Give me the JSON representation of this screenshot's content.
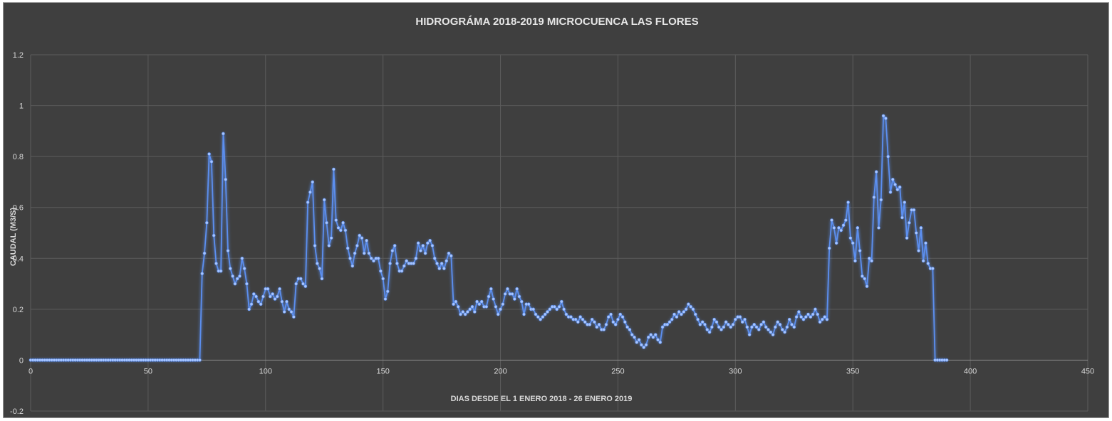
{
  "chart_data": {
    "type": "line",
    "title": "HIDROGRÁMA 2018-2019 MICROCUENCA LAS FLORES",
    "xlabel": "DIAS DESDE EL 1 ENERO 2018 - 26 ENERO 2019",
    "ylabel": "CAUDAL (M3/S)",
    "xlim": [
      0,
      450
    ],
    "ylim": [
      -0.2,
      1.2
    ],
    "x_ticks": [
      "0",
      "50",
      "100",
      "150",
      "200",
      "250",
      "300",
      "350",
      "400",
      "450"
    ],
    "y_ticks": [
      "-0.2",
      "0",
      "0.2",
      "0.4",
      "0.6",
      "0.8",
      "1",
      "1.2"
    ],
    "grid": true,
    "line_color": "#5b8ff0",
    "series": [
      {
        "points": [
          [
            0,
            0
          ],
          [
            72,
            0
          ],
          [
            73,
            0.34
          ],
          [
            74,
            0.42
          ],
          [
            75,
            0.54
          ],
          [
            76,
            0.81
          ],
          [
            77,
            0.78
          ],
          [
            78,
            0.49
          ],
          [
            79,
            0.38
          ],
          [
            80,
            0.35
          ],
          [
            81,
            0.35
          ],
          [
            82,
            0.89
          ],
          [
            83,
            0.71
          ],
          [
            84,
            0.43
          ],
          [
            85,
            0.36
          ],
          [
            86,
            0.33
          ],
          [
            87,
            0.3
          ],
          [
            88,
            0.32
          ],
          [
            89,
            0.33
          ],
          [
            90,
            0.4
          ],
          [
            91,
            0.36
          ],
          [
            92,
            0.3
          ],
          [
            93,
            0.2
          ],
          [
            94,
            0.22
          ],
          [
            95,
            0.26
          ],
          [
            96,
            0.25
          ],
          [
            97,
            0.23
          ],
          [
            98,
            0.22
          ],
          [
            99,
            0.25
          ],
          [
            100,
            0.28
          ],
          [
            101,
            0.28
          ],
          [
            102,
            0.25
          ],
          [
            103,
            0.26
          ],
          [
            104,
            0.24
          ],
          [
            105,
            0.25
          ],
          [
            106,
            0.28
          ],
          [
            107,
            0.23
          ],
          [
            108,
            0.19
          ],
          [
            109,
            0.23
          ],
          [
            110,
            0.2
          ],
          [
            111,
            0.19
          ],
          [
            112,
            0.17
          ],
          [
            113,
            0.3
          ],
          [
            114,
            0.32
          ],
          [
            115,
            0.32
          ],
          [
            116,
            0.3
          ],
          [
            117,
            0.29
          ],
          [
            118,
            0.62
          ],
          [
            119,
            0.66
          ],
          [
            120,
            0.7
          ],
          [
            121,
            0.45
          ],
          [
            122,
            0.38
          ],
          [
            123,
            0.36
          ],
          [
            124,
            0.32
          ],
          [
            125,
            0.63
          ],
          [
            126,
            0.54
          ],
          [
            127,
            0.45
          ],
          [
            128,
            0.48
          ],
          [
            129,
            0.75
          ],
          [
            130,
            0.55
          ],
          [
            131,
            0.52
          ],
          [
            132,
            0.51
          ],
          [
            133,
            0.54
          ],
          [
            134,
            0.51
          ],
          [
            135,
            0.44
          ],
          [
            136,
            0.4
          ],
          [
            137,
            0.37
          ],
          [
            138,
            0.42
          ],
          [
            139,
            0.45
          ],
          [
            140,
            0.49
          ],
          [
            141,
            0.48
          ],
          [
            142,
            0.42
          ],
          [
            143,
            0.47
          ],
          [
            144,
            0.42
          ],
          [
            145,
            0.4
          ],
          [
            146,
            0.39
          ],
          [
            147,
            0.4
          ],
          [
            148,
            0.4
          ],
          [
            149,
            0.35
          ],
          [
            150,
            0.32
          ],
          [
            151,
            0.24
          ],
          [
            152,
            0.27
          ],
          [
            153,
            0.38
          ],
          [
            154,
            0.43
          ],
          [
            155,
            0.45
          ],
          [
            156,
            0.38
          ],
          [
            157,
            0.35
          ],
          [
            158,
            0.35
          ],
          [
            159,
            0.37
          ],
          [
            160,
            0.39
          ],
          [
            161,
            0.38
          ],
          [
            162,
            0.38
          ],
          [
            163,
            0.38
          ],
          [
            164,
            0.4
          ],
          [
            165,
            0.46
          ],
          [
            166,
            0.43
          ],
          [
            167,
            0.45
          ],
          [
            168,
            0.42
          ],
          [
            169,
            0.46
          ],
          [
            170,
            0.47
          ],
          [
            171,
            0.45
          ],
          [
            172,
            0.4
          ],
          [
            173,
            0.38
          ],
          [
            174,
            0.36
          ],
          [
            175,
            0.38
          ],
          [
            176,
            0.36
          ],
          [
            177,
            0.39
          ],
          [
            178,
            0.42
          ],
          [
            179,
            0.41
          ],
          [
            180,
            0.22
          ],
          [
            181,
            0.23
          ],
          [
            182,
            0.21
          ],
          [
            183,
            0.18
          ],
          [
            184,
            0.19
          ],
          [
            185,
            0.18
          ],
          [
            186,
            0.19
          ],
          [
            187,
            0.2
          ],
          [
            188,
            0.21
          ],
          [
            189,
            0.19
          ],
          [
            190,
            0.23
          ],
          [
            191,
            0.22
          ],
          [
            192,
            0.23
          ],
          [
            193,
            0.21
          ],
          [
            194,
            0.21
          ],
          [
            195,
            0.25
          ],
          [
            196,
            0.28
          ],
          [
            197,
            0.24
          ],
          [
            198,
            0.21
          ],
          [
            199,
            0.18
          ],
          [
            200,
            0.2
          ],
          [
            201,
            0.22
          ],
          [
            202,
            0.26
          ],
          [
            203,
            0.28
          ],
          [
            204,
            0.26
          ],
          [
            205,
            0.26
          ],
          [
            206,
            0.24
          ],
          [
            207,
            0.28
          ],
          [
            208,
            0.25
          ],
          [
            209,
            0.23
          ],
          [
            210,
            0.18
          ],
          [
            211,
            0.22
          ],
          [
            212,
            0.22
          ],
          [
            213,
            0.2
          ],
          [
            214,
            0.2
          ],
          [
            215,
            0.18
          ],
          [
            216,
            0.17
          ],
          [
            217,
            0.16
          ],
          [
            218,
            0.17
          ],
          [
            219,
            0.18
          ],
          [
            220,
            0.19
          ],
          [
            221,
            0.2
          ],
          [
            222,
            0.21
          ],
          [
            223,
            0.21
          ],
          [
            224,
            0.2
          ],
          [
            225,
            0.21
          ],
          [
            226,
            0.23
          ],
          [
            227,
            0.2
          ],
          [
            228,
            0.18
          ],
          [
            229,
            0.17
          ],
          [
            230,
            0.17
          ],
          [
            231,
            0.16
          ],
          [
            232,
            0.16
          ],
          [
            233,
            0.15
          ],
          [
            234,
            0.17
          ],
          [
            235,
            0.16
          ],
          [
            236,
            0.15
          ],
          [
            237,
            0.14
          ],
          [
            238,
            0.14
          ],
          [
            239,
            0.16
          ],
          [
            240,
            0.15
          ],
          [
            241,
            0.13
          ],
          [
            242,
            0.14
          ],
          [
            243,
            0.12
          ],
          [
            244,
            0.12
          ],
          [
            245,
            0.14
          ],
          [
            246,
            0.17
          ],
          [
            247,
            0.18
          ],
          [
            248,
            0.15
          ],
          [
            249,
            0.14
          ],
          [
            250,
            0.16
          ],
          [
            251,
            0.18
          ],
          [
            252,
            0.17
          ],
          [
            253,
            0.15
          ],
          [
            254,
            0.13
          ],
          [
            255,
            0.12
          ],
          [
            256,
            0.1
          ],
          [
            257,
            0.09
          ],
          [
            258,
            0.07
          ],
          [
            259,
            0.08
          ],
          [
            260,
            0.06
          ],
          [
            261,
            0.05
          ],
          [
            262,
            0.06
          ],
          [
            263,
            0.09
          ],
          [
            264,
            0.1
          ],
          [
            265,
            0.09
          ],
          [
            266,
            0.1
          ],
          [
            267,
            0.08
          ],
          [
            268,
            0.07
          ],
          [
            269,
            0.13
          ],
          [
            270,
            0.14
          ],
          [
            271,
            0.14
          ],
          [
            272,
            0.15
          ],
          [
            273,
            0.16
          ],
          [
            274,
            0.18
          ],
          [
            275,
            0.17
          ],
          [
            276,
            0.19
          ],
          [
            277,
            0.18
          ],
          [
            278,
            0.19
          ],
          [
            279,
            0.2
          ],
          [
            280,
            0.22
          ],
          [
            281,
            0.21
          ],
          [
            282,
            0.2
          ],
          [
            283,
            0.18
          ],
          [
            284,
            0.16
          ],
          [
            285,
            0.14
          ],
          [
            286,
            0.15
          ],
          [
            287,
            0.14
          ],
          [
            288,
            0.12
          ],
          [
            289,
            0.11
          ],
          [
            290,
            0.13
          ],
          [
            291,
            0.16
          ],
          [
            292,
            0.15
          ],
          [
            293,
            0.13
          ],
          [
            294,
            0.12
          ],
          [
            295,
            0.13
          ],
          [
            296,
            0.15
          ],
          [
            297,
            0.14
          ],
          [
            298,
            0.13
          ],
          [
            299,
            0.14
          ],
          [
            300,
            0.16
          ],
          [
            301,
            0.17
          ],
          [
            302,
            0.17
          ],
          [
            303,
            0.15
          ],
          [
            304,
            0.16
          ],
          [
            305,
            0.13
          ],
          [
            306,
            0.1
          ],
          [
            307,
            0.13
          ],
          [
            308,
            0.14
          ],
          [
            309,
            0.13
          ],
          [
            310,
            0.12
          ],
          [
            311,
            0.14
          ],
          [
            312,
            0.15
          ],
          [
            313,
            0.13
          ],
          [
            314,
            0.12
          ],
          [
            315,
            0.11
          ],
          [
            316,
            0.1
          ],
          [
            317,
            0.13
          ],
          [
            318,
            0.15
          ],
          [
            319,
            0.14
          ],
          [
            320,
            0.12
          ],
          [
            321,
            0.11
          ],
          [
            322,
            0.13
          ],
          [
            323,
            0.16
          ],
          [
            324,
            0.14
          ],
          [
            325,
            0.13
          ],
          [
            326,
            0.17
          ],
          [
            327,
            0.19
          ],
          [
            328,
            0.17
          ],
          [
            329,
            0.16
          ],
          [
            330,
            0.17
          ],
          [
            331,
            0.18
          ],
          [
            332,
            0.17
          ],
          [
            333,
            0.18
          ],
          [
            334,
            0.2
          ],
          [
            335,
            0.18
          ],
          [
            336,
            0.15
          ],
          [
            337,
            0.16
          ],
          [
            338,
            0.17
          ],
          [
            339,
            0.16
          ],
          [
            340,
            0.44
          ],
          [
            341,
            0.55
          ],
          [
            342,
            0.52
          ],
          [
            343,
            0.46
          ],
          [
            344,
            0.52
          ],
          [
            345,
            0.51
          ],
          [
            346,
            0.53
          ],
          [
            347,
            0.55
          ],
          [
            348,
            0.62
          ],
          [
            349,
            0.48
          ],
          [
            350,
            0.46
          ],
          [
            351,
            0.39
          ],
          [
            352,
            0.52
          ],
          [
            353,
            0.43
          ],
          [
            354,
            0.33
          ],
          [
            355,
            0.32
          ],
          [
            356,
            0.29
          ],
          [
            357,
            0.4
          ],
          [
            358,
            0.39
          ],
          [
            359,
            0.64
          ],
          [
            360,
            0.74
          ],
          [
            361,
            0.52
          ],
          [
            362,
            0.63
          ],
          [
            363,
            0.96
          ],
          [
            364,
            0.95
          ],
          [
            365,
            0.8
          ],
          [
            366,
            0.66
          ],
          [
            367,
            0.71
          ],
          [
            368,
            0.69
          ],
          [
            369,
            0.67
          ],
          [
            370,
            0.68
          ],
          [
            371,
            0.56
          ],
          [
            372,
            0.62
          ],
          [
            373,
            0.48
          ],
          [
            374,
            0.54
          ],
          [
            375,
            0.59
          ],
          [
            376,
            0.59
          ],
          [
            377,
            0.5
          ],
          [
            378,
            0.43
          ],
          [
            379,
            0.52
          ],
          [
            380,
            0.39
          ],
          [
            381,
            0.46
          ],
          [
            382,
            0.38
          ],
          [
            383,
            0.36
          ],
          [
            384,
            0.36
          ],
          [
            385,
            0
          ],
          [
            390,
            0
          ]
        ]
      }
    ]
  }
}
